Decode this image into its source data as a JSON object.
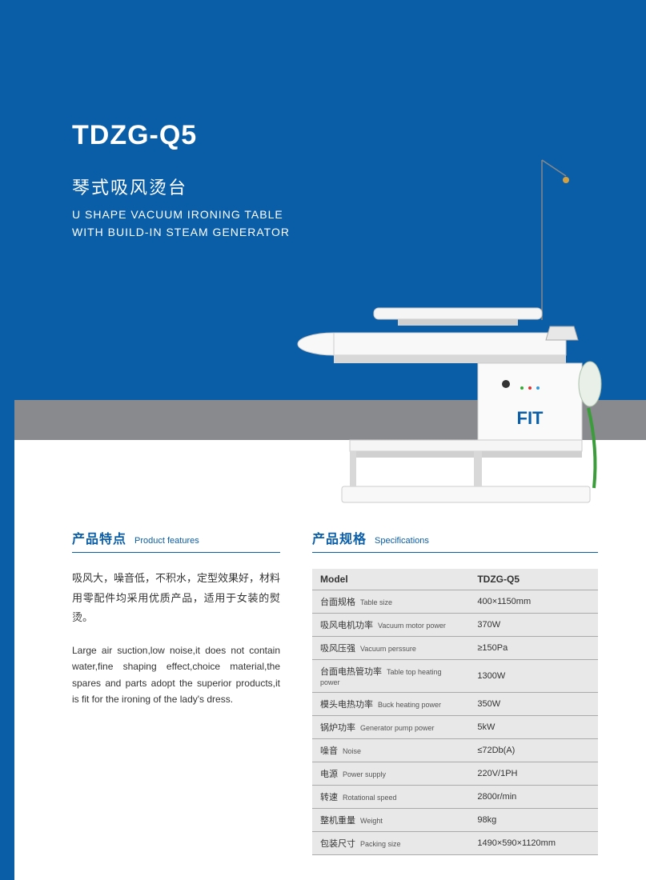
{
  "colors": {
    "primary": "#0a5ea8",
    "gray_band": "#888a8d",
    "table_bg": "#e8e8e8",
    "text": "#333333"
  },
  "hero": {
    "model": "TDZG-Q5",
    "title_cn": "琴式吸风烫台",
    "title_en_1": "U SHAPE VACUUM IRONING TABLE",
    "title_en_2": "WITH BUILD-IN STEAM GENERATOR"
  },
  "product_logo": "FIT",
  "features": {
    "heading_cn": "产品特点",
    "heading_en": "Product features",
    "body_cn": "吸风大，噪音低，不积水，定型效果好，材料用零配件均采用优质产品，适用于女装的熨烫。",
    "body_en": "Large air suction,low noise,it does not contain water,fine shaping effect,choice material,the spares and parts adopt the superior products,it is fit for the ironing of the lady's dress."
  },
  "specs": {
    "heading_cn": "产品规格",
    "heading_en": "Specifications",
    "header_label": "Model",
    "header_value": "TDZG-Q5",
    "rows": [
      {
        "cn": "台面规格",
        "en": "Table size",
        "val": "400×1150mm"
      },
      {
        "cn": "吸风电机功率",
        "en": "Vacuum motor power",
        "val": "370W"
      },
      {
        "cn": "吸风压强",
        "en": "Vacuum perssure",
        "val": "≥150Pa"
      },
      {
        "cn": "台面电热管功率",
        "en": "Table top heating power",
        "val": "1300W"
      },
      {
        "cn": "模头电热功率",
        "en": "Buck heating power",
        "val": "350W"
      },
      {
        "cn": "锅炉功率",
        "en": "Generator pump power",
        "val": "5kW"
      },
      {
        "cn": "噪音",
        "en": "Noise",
        "val": "≤72Db(A)"
      },
      {
        "cn": "电源",
        "en": "Power supply",
        "val": "220V/1PH"
      },
      {
        "cn": "转速",
        "en": "Rotational speed",
        "val": "2800r/min"
      },
      {
        "cn": "整机重量",
        "en": "Weight",
        "val": "98kg"
      },
      {
        "cn": "包装尺寸",
        "en": "Packing size",
        "val": "1490×590×1120mm"
      }
    ]
  }
}
